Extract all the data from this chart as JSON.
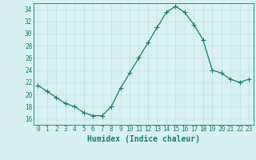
{
  "x": [
    0,
    1,
    2,
    3,
    4,
    5,
    6,
    7,
    8,
    9,
    10,
    11,
    12,
    13,
    14,
    15,
    16,
    17,
    18,
    19,
    20,
    21,
    22,
    23
  ],
  "y": [
    21.5,
    20.5,
    19.5,
    18.5,
    18.0,
    17.0,
    16.5,
    16.5,
    18.0,
    21.0,
    23.5,
    26.0,
    28.5,
    31.0,
    33.5,
    34.5,
    33.5,
    31.5,
    29.0,
    24.0,
    23.5,
    22.5,
    22.0,
    22.5
  ],
  "line_color": "#1a7a6e",
  "marker": "+",
  "marker_size": 4,
  "bg_color": "#d9f0f0",
  "grid_color": "#c0dede",
  "xlabel": "Humidex (Indice chaleur)",
  "ylim": [
    15,
    35
  ],
  "yticks": [
    16,
    18,
    20,
    22,
    24,
    26,
    28,
    30,
    32,
    34
  ],
  "xlim": [
    -0.5,
    23.5
  ],
  "xticks": [
    0,
    1,
    2,
    3,
    4,
    5,
    6,
    7,
    8,
    9,
    10,
    11,
    12,
    13,
    14,
    15,
    16,
    17,
    18,
    19,
    20,
    21,
    22,
    23
  ],
  "tick_color": "#1a7a6e",
  "label_fontsize": 5.5,
  "xlabel_fontsize": 7.0,
  "line_width": 0.9,
  "marker_color": "#1a7a6e"
}
